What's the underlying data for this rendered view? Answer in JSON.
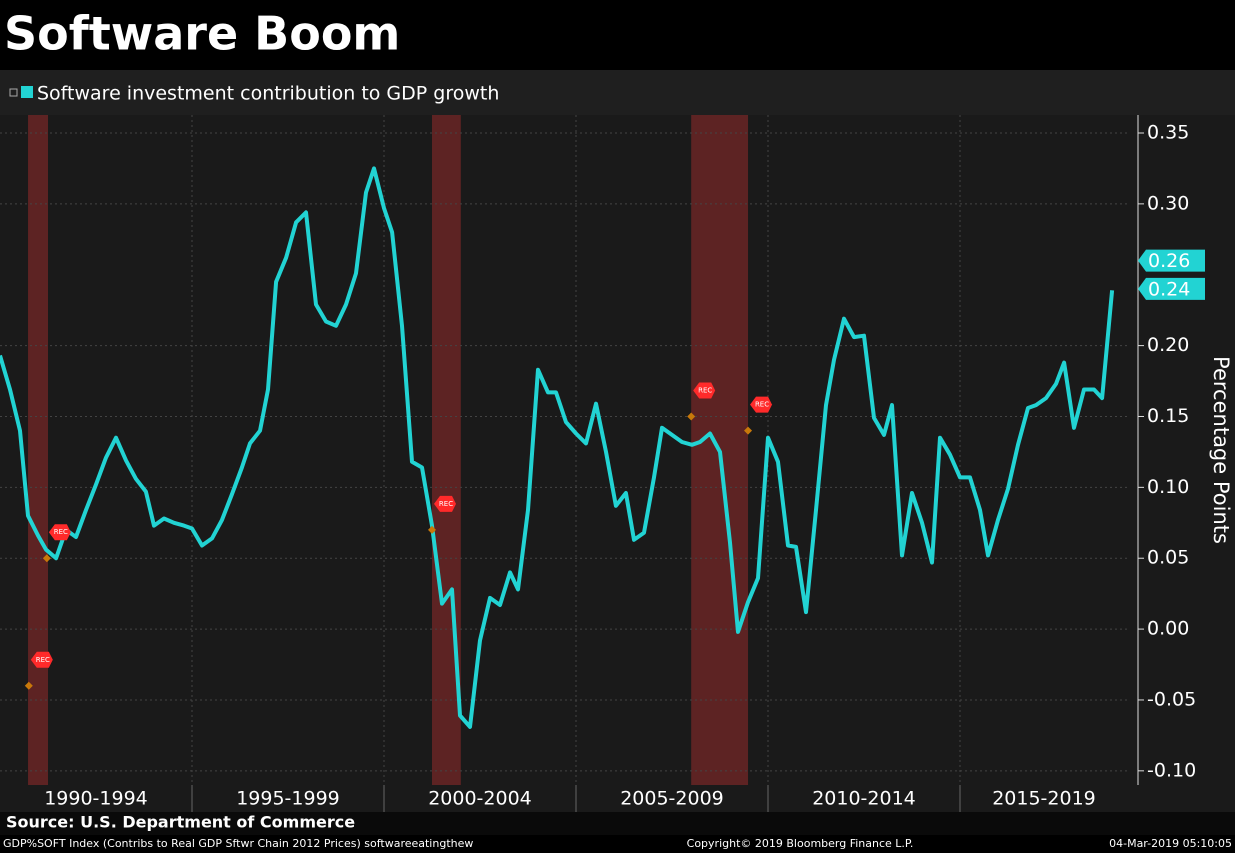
{
  "chart_data": {
    "type": "line",
    "title": "Software Boom",
    "ylabel": "Percentage Points",
    "source": "Source: U.S. Department of Commerce",
    "footer_left": "GDP%SOFT Index (Contribs to Real GDP Sftwr Chain 2012 Prices) softwareeatingthew",
    "footer_center": "Copyright© 2019 Bloomberg Finance L.P.",
    "footer_right": "04-Mar-2019 05:10:05",
    "x": [
      1990.0,
      1990.26,
      1990.52,
      1990.73,
      1990.99,
      1991.2,
      1991.46,
      1991.72,
      1991.98,
      1992.24,
      1992.5,
      1992.76,
      1993.02,
      1993.28,
      1993.54,
      1993.8,
      1994.01,
      1994.27,
      1994.53,
      1994.79,
      1995.0,
      1995.26,
      1995.52,
      1995.78,
      1996.04,
      1996.3,
      1996.51,
      1996.77,
      1996.98,
      1997.19,
      1997.45,
      1997.71,
      1997.97,
      1998.23,
      1998.49,
      1998.75,
      1999.01,
      1999.27,
      1999.53,
      1999.74,
      2000.0,
      2000.21,
      2000.47,
      2000.73,
      2000.99,
      2001.25,
      2001.51,
      2001.77,
      2001.98,
      2002.24,
      2002.5,
      2002.76,
      2003.02,
      2003.28,
      2003.49,
      2003.75,
      2004.01,
      2004.27,
      2004.48,
      2004.74,
      2005.0,
      2005.26,
      2005.52,
      2005.78,
      2006.04,
      2006.3,
      2006.51,
      2006.77,
      2007.03,
      2007.24,
      2007.5,
      2007.76,
      2008.02,
      2008.23,
      2008.49,
      2008.75,
      2009.01,
      2009.22,
      2009.48,
      2009.74,
      2010.0,
      2010.26,
      2010.52,
      2010.73,
      2010.99,
      2011.25,
      2011.51,
      2011.72,
      2011.98,
      2012.24,
      2012.5,
      2012.76,
      2013.02,
      2013.23,
      2013.49,
      2013.75,
      2014.01,
      2014.27,
      2014.48,
      2014.74,
      2015.0,
      2015.26,
      2015.52,
      2015.73,
      2015.99,
      2016.25,
      2016.51,
      2016.77,
      2016.98,
      2017.24,
      2017.5,
      2017.71,
      2017.97,
      2018.23,
      2018.49,
      2018.7,
      2018.96
    ],
    "series": [
      {
        "name": "Software investment contribution to GDP growth",
        "color": "#22d3d3",
        "values": [
          0.193,
          0.169,
          0.14,
          0.08,
          0.066,
          0.056,
          0.05,
          0.07,
          0.065,
          0.084,
          0.102,
          0.121,
          0.135,
          0.119,
          0.106,
          0.097,
          0.073,
          0.078,
          0.075,
          0.073,
          0.071,
          0.059,
          0.064,
          0.077,
          0.095,
          0.114,
          0.131,
          0.14,
          0.169,
          0.245,
          0.262,
          0.287,
          0.294,
          0.229,
          0.217,
          0.214,
          0.229,
          0.251,
          0.308,
          0.325,
          0.297,
          0.28,
          0.214,
          0.118,
          0.114,
          0.073,
          0.018,
          0.028,
          -0.061,
          -0.069,
          -0.008,
          0.022,
          0.017,
          0.04,
          0.028,
          0.084,
          0.183,
          0.167,
          0.167,
          0.146,
          0.138,
          0.131,
          0.159,
          0.125,
          0.087,
          0.096,
          0.063,
          0.068,
          0.107,
          0.142,
          0.137,
          0.132,
          0.13,
          0.132,
          0.138,
          0.125,
          0.061,
          -0.002,
          0.019,
          0.036,
          0.135,
          0.118,
          0.059,
          0.058,
          0.012,
          0.084,
          0.158,
          0.19,
          0.219,
          0.206,
          0.207,
          0.149,
          0.137,
          0.158,
          0.052,
          0.096,
          0.075,
          0.047,
          0.135,
          0.123,
          0.107,
          0.107,
          0.084,
          0.052,
          0.077,
          0.099,
          0.13,
          0.156,
          0.158,
          0.163,
          0.173,
          0.188,
          0.142,
          0.169,
          0.169,
          0.163,
          0.239
        ]
      }
    ],
    "last_value_tags": [
      0.26,
      0.24
    ],
    "xlim": [
      1990,
      2019.375
    ],
    "xticks": [
      {
        "value": 1990,
        "label": "1990-1994"
      },
      {
        "value": 1995,
        "label": "1995-1999"
      },
      {
        "value": 2000,
        "label": "2000-2004"
      },
      {
        "value": 2005,
        "label": "2005-2009"
      },
      {
        "value": 2010,
        "label": "2010-2014"
      },
      {
        "value": 2015,
        "label": "2015-2019"
      }
    ],
    "ylim": [
      -0.11,
      0.3627
    ],
    "yticks": [
      {
        "value": 0.35,
        "label": "0.35"
      },
      {
        "value": 0.3,
        "label": "0.30"
      },
      {
        "value": 0.2,
        "label": "0.20"
      },
      {
        "value": 0.15,
        "label": "0.15"
      },
      {
        "value": 0.1,
        "label": "0.10"
      },
      {
        "value": 0.05,
        "label": "0.05"
      },
      {
        "value": 0,
        "label": "0.00"
      },
      {
        "value": -0.05,
        "label": "-0.05"
      },
      {
        "value": -0.1,
        "label": "-0.10"
      }
    ],
    "grid": true,
    "shaded_regions": [
      [
        1990.73,
        1991.25
      ],
      [
        2001.25,
        2002.0
      ],
      [
        2008.0,
        2009.48
      ]
    ],
    "shade_color": "#8a2a2a",
    "annotations": [
      {
        "text": "REC",
        "x": 1991.22,
        "y": 0.05
      },
      {
        "text": "REC",
        "x": 1990.75,
        "y": -0.04
      },
      {
        "text": "REC",
        "x": 2001.25,
        "y": 0.07
      },
      {
        "text": "REC",
        "x": 2008.0,
        "y": 0.15
      },
      {
        "text": "REC",
        "x": 2009.48,
        "y": 0.14
      }
    ]
  }
}
